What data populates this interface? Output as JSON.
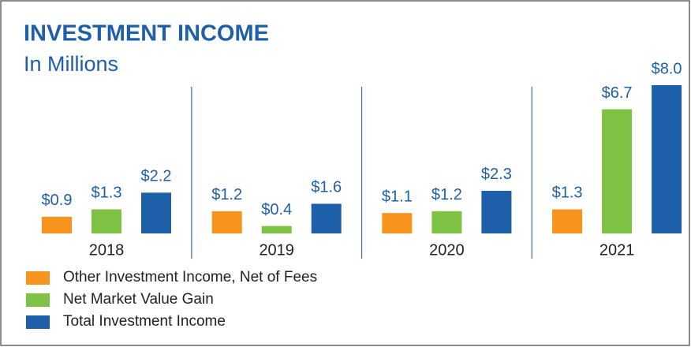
{
  "chart_data": {
    "type": "bar",
    "title": "INVESTMENT INCOME",
    "subtitle": "In Millions",
    "categories": [
      "2018",
      "2019",
      "2020",
      "2021"
    ],
    "series": [
      {
        "name": "Other Investment Income, Net of Fees",
        "color": "#f7941d",
        "values": [
          0.9,
          1.2,
          1.1,
          1.3
        ],
        "value_labels": [
          "$0.9",
          "$1.2",
          "$1.1",
          "$1.3"
        ]
      },
      {
        "name": "Net Market Value Gain",
        "color": "#7dc242",
        "values": [
          1.3,
          0.4,
          1.2,
          6.7
        ],
        "value_labels": [
          "$1.3",
          "$0.4",
          "$1.2",
          "$6.7"
        ]
      },
      {
        "name": "Total Investment Income",
        "color": "#1d5fa8",
        "values": [
          2.2,
          1.6,
          2.3,
          8.0
        ],
        "value_labels": [
          "$2.2",
          "$1.6",
          "$2.3",
          "$8.0"
        ]
      }
    ]
  }
}
